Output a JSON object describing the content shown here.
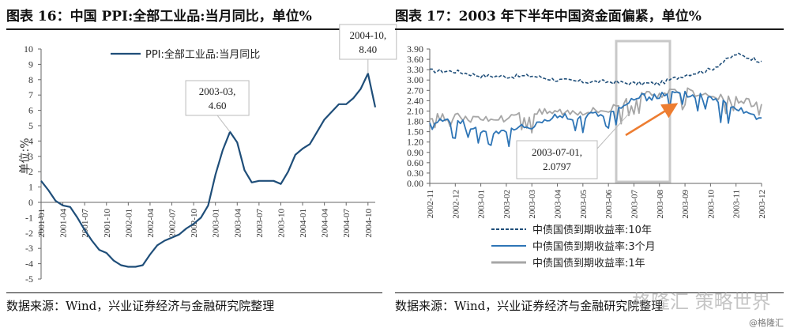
{
  "left": {
    "title": "图表 16：中国 PPI:全部工业品:当月同比，单位%",
    "source": "数据来源：Wind，兴业证券经济与金融研究院整理"
  },
  "right": {
    "title": "图表 17：2003 年下半年中国资金面偏紧，单位%",
    "source": "数据来源：Wind，兴业证券经济与金融研究院整理"
  },
  "watermark": "格隆汇 策略世界",
  "credit": "@格隆汇",
  "chart_data": [
    {
      "type": "line",
      "title": "",
      "ylabel": "单位:%",
      "xlabel": "",
      "ylim": [
        -5,
        10
      ],
      "yticks": [
        10,
        9,
        8,
        7,
        6,
        5,
        4,
        3,
        2,
        1,
        0,
        -1,
        -2,
        -3,
        -4,
        -5
      ],
      "x_tick_labels": [
        "2001-01",
        "2001-04",
        "2001-07",
        "2001-10",
        "2002-01",
        "2002-04",
        "2002-07",
        "2002-10",
        "2003-01",
        "2003-04",
        "2003-07",
        "2003-10",
        "2004-01",
        "2004-04",
        "2004-07",
        "2004-10"
      ],
      "legend": {
        "position": "top-center"
      },
      "grid": false,
      "series": [
        {
          "name": "PPI:全部工业品:当月同比",
          "color": "#1f4e79",
          "x": [
            "2001-01",
            "2001-02",
            "2001-03",
            "2001-04",
            "2001-05",
            "2001-06",
            "2001-07",
            "2001-08",
            "2001-09",
            "2001-10",
            "2001-11",
            "2001-12",
            "2002-01",
            "2002-02",
            "2002-03",
            "2002-04",
            "2002-05",
            "2002-06",
            "2002-07",
            "2002-08",
            "2002-09",
            "2002-10",
            "2002-11",
            "2002-12",
            "2003-01",
            "2003-02",
            "2003-03",
            "2003-04",
            "2003-05",
            "2003-06",
            "2003-07",
            "2003-08",
            "2003-09",
            "2003-10",
            "2003-11",
            "2003-12",
            "2004-01",
            "2004-02",
            "2004-03",
            "2004-04",
            "2004-05",
            "2004-06",
            "2004-07",
            "2004-08",
            "2004-09",
            "2004-10",
            "2004-11"
          ],
          "values": [
            1.4,
            0.8,
            0.1,
            -0.2,
            -0.3,
            -1.0,
            -1.8,
            -2.5,
            -3.1,
            -3.3,
            -3.8,
            -4.1,
            -4.2,
            -4.2,
            -4.1,
            -3.4,
            -2.8,
            -2.5,
            -2.3,
            -2.1,
            -1.7,
            -1.4,
            -1.0,
            -0.2,
            1.8,
            3.4,
            4.6,
            3.9,
            2.1,
            1.3,
            1.4,
            1.4,
            1.4,
            1.2,
            2.0,
            3.1,
            3.5,
            3.8,
            4.6,
            5.4,
            5.9,
            6.4,
            6.4,
            6.8,
            7.4,
            8.4,
            6.2
          ]
        }
      ],
      "annotations": [
        {
          "x": "2003-03",
          "text": [
            "2003-03,",
            "4.60"
          ],
          "value": 4.6
        },
        {
          "x": "2004-10",
          "text": [
            "2004-10,",
            "8.40"
          ],
          "value": 8.4
        }
      ]
    },
    {
      "type": "line",
      "title": "",
      "ylabel": "",
      "xlabel": "",
      "ylim": [
        0,
        3.9
      ],
      "yticks": [
        "3.90",
        "3.60",
        "3.30",
        "3.00",
        "2.70",
        "2.40",
        "2.10",
        "1.80",
        "1.50",
        "1.20",
        "0.90",
        "0.60",
        "0.30",
        "0.00"
      ],
      "x_tick_labels": [
        "2002-11",
        "2002-12",
        "2003-01",
        "2003-02",
        "2003-03",
        "2003-04",
        "2003-05",
        "2003-06",
        "2003-07",
        "2003-08",
        "2003-09",
        "2003-10",
        "2003-11",
        "2003-12"
      ],
      "legend": {
        "position": "bottom"
      },
      "grid": false,
      "series": [
        {
          "name": "中债国债到期收益率:10年",
          "color": "#1f4e79",
          "style": "dashed",
          "x": [
            "2002-11",
            "2002-12",
            "2003-01",
            "2003-02",
            "2003-03",
            "2003-04",
            "2003-05",
            "2003-06",
            "2003-07",
            "2003-08",
            "2003-09",
            "2003-10",
            "2003-11",
            "2003-12"
          ],
          "values": [
            3.27,
            3.25,
            3.12,
            3.1,
            3.12,
            3.0,
            2.95,
            2.95,
            2.9,
            2.9,
            3.15,
            3.3,
            3.75,
            3.55
          ]
        },
        {
          "name": "中债国债到期收益率:3个月",
          "color": "#2e75b6",
          "style": "solid",
          "x": [
            "2002-11",
            "2002-12",
            "2003-01",
            "2003-02",
            "2003-03",
            "2003-04",
            "2003-05",
            "2003-06",
            "2003-07",
            "2003-08",
            "2003-09",
            "2003-10",
            "2003-11",
            "2003-12"
          ],
          "values": [
            1.85,
            1.8,
            1.55,
            1.45,
            1.7,
            1.95,
            1.95,
            2.05,
            2.45,
            2.55,
            2.6,
            2.45,
            2.25,
            1.9
          ]
        },
        {
          "name": "中债国债到期收益率:1年",
          "color": "#a6a6a6",
          "style": "solid",
          "x": [
            "2002-11",
            "2002-12",
            "2003-01",
            "2003-02",
            "2003-03",
            "2003-04",
            "2003-05",
            "2003-06",
            "2003-07",
            "2003-08",
            "2003-09",
            "2003-10",
            "2003-11",
            "2003-12"
          ],
          "values": [
            1.9,
            1.95,
            1.85,
            1.9,
            2.05,
            2.1,
            2.1,
            2.15,
            2.5,
            2.6,
            2.7,
            2.55,
            2.4,
            2.3
          ]
        }
      ],
      "annotations": [
        {
          "x": "2003-07-01",
          "text": [
            "2003-07-01,",
            "2.0797"
          ],
          "value": 2.0797
        }
      ]
    }
  ]
}
